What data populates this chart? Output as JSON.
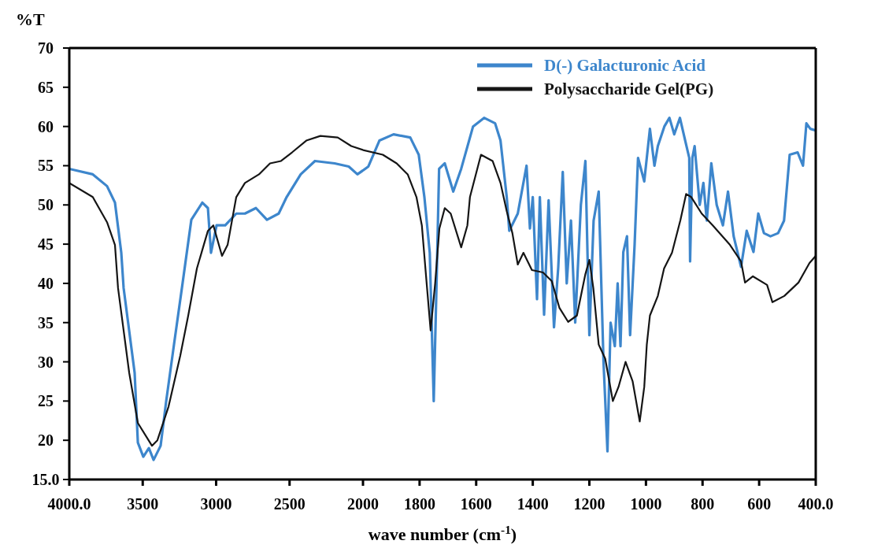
{
  "chart_data": [
    {
      "type": "line",
      "ylabel": "%T",
      "xlim": [
        4000,
        2000
      ],
      "ylim": [
        15,
        70
      ],
      "xticks": [
        {
          "value": 4000,
          "label": "4000.0"
        },
        3500,
        3000,
        2500
      ],
      "yticks": [
        {
          "value": 15,
          "label": "15.0"
        },
        20,
        25,
        30,
        35,
        40,
        45,
        50,
        55,
        60,
        65,
        70
      ],
      "grid": false,
      "line_style": "solid",
      "tick_labels": true,
      "series": [
        {
          "color": "#3d86cc",
          "x": [
            4000,
            3840,
            3743,
            3689,
            3646,
            3630,
            3555,
            3533,
            3496,
            3458,
            3426,
            3378,
            3340,
            3287,
            3228,
            3169,
            3094,
            3056,
            3035,
            2997,
            2938,
            2863,
            2804,
            2729,
            2654,
            2574,
            2520,
            2424,
            2327,
            2193,
            2097,
            2038,
            2000
          ],
          "values": [
            54.6,
            53.9,
            52.4,
            50.3,
            43.9,
            39.4,
            28.6,
            19.7,
            17.9,
            19.0,
            17.5,
            19.3,
            25.0,
            32.2,
            40.1,
            48.1,
            50.3,
            49.6,
            43.9,
            47.4,
            47.4,
            48.9,
            48.9,
            49.6,
            48.1,
            48.9,
            51.0,
            53.9,
            55.6,
            55.3,
            54.9,
            53.9,
            54.4
          ]
        },
        {
          "color": "#151515",
          "x": [
            4000,
            3840,
            3743,
            3689,
            3668,
            3592,
            3533,
            3437,
            3400,
            3324,
            3244,
            3190,
            3131,
            3056,
            3019,
            2960,
            2922,
            2863,
            2804,
            2708,
            2633,
            2558,
            2483,
            2386,
            2290,
            2172,
            2080,
            2000
          ],
          "values": [
            52.8,
            51.0,
            47.8,
            44.9,
            39.4,
            28.6,
            22.2,
            19.3,
            20.0,
            24.3,
            30.8,
            35.9,
            41.9,
            46.7,
            47.4,
            43.5,
            44.9,
            51.0,
            52.8,
            53.9,
            55.3,
            55.6,
            56.7,
            58.2,
            58.8,
            58.6,
            57.5,
            57.0
          ]
        }
      ]
    },
    {
      "type": "line",
      "xlabel": "wave number (cm$^{-1}$)",
      "xlim": [
        2000,
        400
      ],
      "ylim": [
        15,
        70
      ],
      "xticks": [
        2000,
        1800,
        1600,
        1400,
        1200,
        1000,
        800,
        600,
        {
          "value": 400,
          "label": "400.0"
        }
      ],
      "legend": "top right",
      "grid": false,
      "line_style": "solid",
      "tick_labels": "x",
      "series": [
        {
          "name": "D(-) Galacturonic Acid",
          "color": "#3d86cc",
          "x": [
            2000,
            1981,
            1942,
            1892,
            1833,
            1803,
            1783,
            1764,
            1750,
            1740,
            1731,
            1711,
            1681,
            1653,
            1611,
            1572,
            1533,
            1514,
            1492,
            1483,
            1453,
            1422,
            1410,
            1400,
            1385,
            1375,
            1360,
            1344,
            1325,
            1310,
            1294,
            1280,
            1265,
            1250,
            1230,
            1214,
            1200,
            1185,
            1167,
            1150,
            1136,
            1125,
            1110,
            1100,
            1090,
            1080,
            1067,
            1056,
            1040,
            1028,
            1006,
            986,
            970,
            958,
            935,
            917,
            900,
            880,
            860,
            847,
            844,
            836,
            828,
            810,
            797,
            785,
            769,
            750,
            728,
            710,
            690,
            664,
            644,
            620,
            603,
            583,
            560,
            533,
            512,
            492,
            464,
            445,
            433,
            419,
            400
          ],
          "values": [
            54.4,
            54.9,
            58.2,
            59.0,
            58.6,
            56.4,
            51.0,
            43.9,
            25.0,
            40.0,
            54.6,
            55.3,
            51.7,
            54.6,
            60.0,
            61.1,
            60.4,
            58.2,
            51.0,
            46.7,
            48.9,
            55.0,
            47.0,
            51.0,
            38.0,
            51.0,
            36.0,
            50.6,
            34.4,
            42.0,
            54.2,
            40.0,
            48.0,
            35.0,
            50.0,
            55.6,
            33.4,
            48.0,
            51.7,
            30.0,
            18.6,
            35.0,
            32.0,
            40.0,
            32.0,
            44.0,
            46.0,
            33.4,
            45.0,
            56.0,
            53.0,
            59.7,
            55.0,
            57.5,
            60.0,
            61.1,
            59.0,
            61.1,
            58.0,
            56.0,
            42.8,
            56.0,
            57.5,
            50.0,
            52.8,
            48.0,
            55.3,
            50.0,
            47.4,
            51.7,
            46.0,
            42.1,
            46.7,
            44.0,
            48.9,
            46.4,
            46.0,
            46.4,
            48.0,
            56.4,
            56.7,
            55.0,
            60.4,
            59.7,
            59.5
          ]
        },
        {
          "name": "Polysaccharide Gel(PG)",
          "color": "#151515",
          "x": [
            2000,
            1930,
            1881,
            1842,
            1811,
            1792,
            1775,
            1761,
            1745,
            1730,
            1711,
            1690,
            1653,
            1631,
            1622,
            1583,
            1542,
            1514,
            1492,
            1472,
            1453,
            1433,
            1403,
            1364,
            1333,
            1306,
            1275,
            1244,
            1214,
            1200,
            1186,
            1167,
            1144,
            1117,
            1097,
            1072,
            1047,
            1022,
            1006,
            997,
            986,
            958,
            936,
            908,
            878,
            858,
            840,
            803,
            764,
            703,
            664,
            650,
            622,
            572,
            553,
            511,
            461,
            422,
            400
          ],
          "values": [
            57.0,
            56.4,
            55.3,
            53.9,
            51.0,
            47.4,
            40.0,
            34.0,
            40.0,
            47.0,
            49.6,
            48.9,
            44.6,
            47.4,
            51.0,
            56.4,
            55.6,
            52.8,
            49.2,
            46.4,
            42.4,
            43.9,
            41.7,
            41.4,
            40.3,
            36.9,
            35.1,
            35.9,
            41.2,
            43.0,
            39.4,
            32.2,
            30.4,
            25.0,
            26.8,
            30.0,
            27.5,
            22.4,
            26.8,
            32.2,
            35.9,
            38.4,
            41.9,
            43.9,
            48.1,
            51.4,
            51.0,
            48.9,
            47.4,
            44.9,
            42.8,
            40.1,
            40.9,
            39.8,
            37.6,
            38.4,
            40.1,
            42.6,
            43.5
          ]
        }
      ]
    }
  ]
}
